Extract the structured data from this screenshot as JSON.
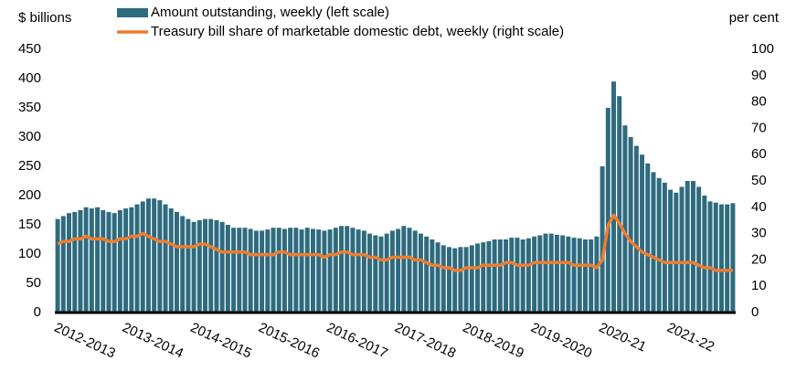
{
  "chart_data": {
    "type": "bar_line",
    "y_label": "$ billions",
    "y2_label": "per cent",
    "categories": [
      "2012-2013",
      null,
      null,
      null,
      null,
      null,
      null,
      null,
      null,
      null,
      null,
      null,
      "2013-2014",
      null,
      null,
      null,
      null,
      null,
      null,
      null,
      null,
      null,
      null,
      null,
      "2014-2015",
      null,
      null,
      null,
      null,
      null,
      null,
      null,
      null,
      null,
      null,
      null,
      "2015-2016",
      null,
      null,
      null,
      null,
      null,
      null,
      null,
      null,
      null,
      null,
      null,
      "2016-2017",
      null,
      null,
      null,
      null,
      null,
      null,
      null,
      null,
      null,
      null,
      null,
      "2017-2018",
      null,
      null,
      null,
      null,
      null,
      null,
      null,
      null,
      null,
      null,
      null,
      "2018-2019",
      null,
      null,
      null,
      null,
      null,
      null,
      null,
      null,
      null,
      null,
      null,
      "2019-2020",
      null,
      null,
      null,
      null,
      null,
      null,
      null,
      null,
      null,
      null,
      null,
      "2020-21",
      null,
      null,
      null,
      null,
      null,
      null,
      null,
      null,
      null,
      null,
      null,
      "2021-22",
      null,
      null,
      null,
      null,
      null,
      null,
      null,
      null,
      null,
      null,
      null
    ],
    "series": [
      {
        "name": "Amount outstanding, weekly (left scale)",
        "type": "bar",
        "color": "#2e6b7f",
        "values": [
          160,
          165,
          170,
          172,
          175,
          180,
          178,
          180,
          175,
          172,
          170,
          175,
          178,
          180,
          185,
          190,
          195,
          195,
          192,
          185,
          178,
          172,
          165,
          160,
          155,
          158,
          160,
          160,
          158,
          155,
          150,
          145,
          145,
          145,
          143,
          140,
          140,
          142,
          145,
          145,
          143,
          145,
          145,
          142,
          145,
          143,
          142,
          140,
          142,
          145,
          148,
          148,
          145,
          142,
          140,
          135,
          132,
          130,
          135,
          140,
          143,
          148,
          145,
          140,
          135,
          130,
          125,
          120,
          115,
          112,
          110,
          112,
          112,
          115,
          118,
          120,
          122,
          125,
          125,
          125,
          128,
          128,
          125,
          127,
          130,
          132,
          135,
          135,
          133,
          132,
          130,
          128,
          127,
          125,
          125,
          130,
          250,
          350,
          395,
          370,
          320,
          300,
          285,
          270,
          255,
          240,
          230,
          222,
          210,
          205,
          215,
          225,
          225,
          215,
          200,
          190,
          188,
          185,
          185,
          187
        ]
      },
      {
        "name": "Treasury bill share of marketable domestic debt, weekly (right scale)",
        "type": "line",
        "axis": "y2",
        "color": "#ed7d31",
        "values": [
          26,
          27,
          27,
          28,
          28,
          29,
          28,
          28,
          28,
          27,
          27,
          28,
          28,
          29,
          29,
          30,
          29,
          28,
          27,
          27,
          26,
          25,
          25,
          25,
          25,
          26,
          26,
          25,
          24,
          23,
          23,
          23,
          23,
          23,
          22,
          22,
          22,
          22,
          22,
          23,
          23,
          22,
          22,
          22,
          22,
          22,
          22,
          21,
          22,
          22,
          23,
          23,
          22,
          22,
          22,
          21,
          21,
          20,
          20,
          21,
          21,
          21,
          21,
          20,
          20,
          19,
          18,
          18,
          17,
          17,
          16,
          16,
          17,
          17,
          17,
          18,
          18,
          18,
          18,
          19,
          19,
          18,
          18,
          18,
          19,
          19,
          19,
          19,
          19,
          19,
          19,
          18,
          18,
          18,
          18,
          17,
          20,
          33,
          37,
          34,
          30,
          27,
          25,
          23,
          22,
          21,
          20,
          19,
          19,
          19,
          19,
          19,
          19,
          18,
          17,
          17,
          16,
          16,
          16,
          16
        ]
      }
    ],
    "ylim": [
      0,
      450
    ],
    "yticks": [
      0,
      50,
      100,
      150,
      200,
      250,
      300,
      350,
      400,
      450
    ],
    "y2lim": [
      0,
      100
    ],
    "y2ticks": [
      0,
      10,
      20,
      30,
      40,
      50,
      60,
      70,
      80,
      90,
      100
    ]
  }
}
